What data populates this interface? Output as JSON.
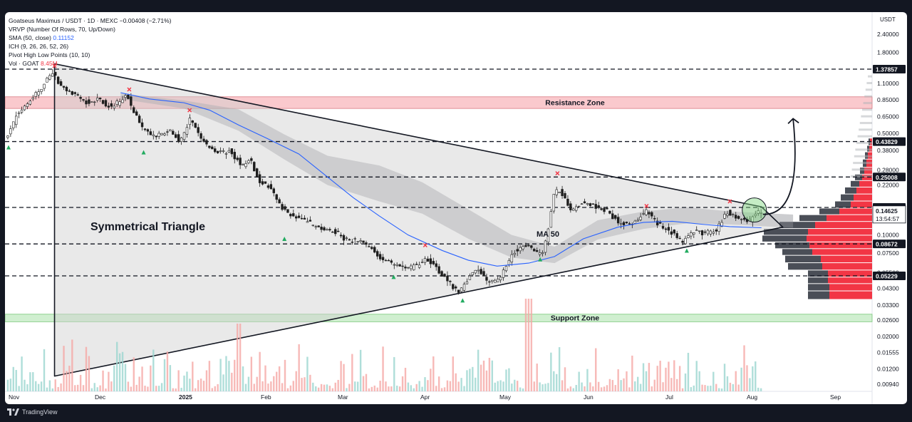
{
  "legend": {
    "symbol_line": "Goatseus Maximus / USDT · 1D · MEXC",
    "change": "−0.00408 (−2.71%)",
    "vrvp": "VRVP (Number Of Rows, 70, Up/Down)",
    "sma_label": "SMA (50, close)",
    "sma_value": "0.11152",
    "ich": "ICH (9, 26, 26, 52, 26)",
    "pivot": "Pivot High Low Points (10, 10)",
    "vol_label": "Vol · GOAT",
    "vol_value": "8.45M"
  },
  "footer": {
    "brand": "TradingView"
  },
  "colors": {
    "up": "#26a69a",
    "down": "#ef5350",
    "candle": "#1e1e1e",
    "sma": "#2962ff",
    "resistance": "#f8b7bc",
    "support": "#c8ecc8",
    "triangle": "#cfcfcf",
    "vrvp_up": "#4a4e57",
    "vrvp_down": "#f23645",
    "pivot_high": "#f23645",
    "pivot_low": "#22ab60"
  },
  "chart_data": {
    "type": "candlestick",
    "scale": "log",
    "currency_label": "USDT",
    "y_ticks": [
      "2.40000",
      "1.80000",
      "1.10000",
      "0.85000",
      "0.65000",
      "0.50000",
      "0.38000",
      "0.28000",
      "0.22000",
      "0.10000",
      "0.07500",
      "0.05500",
      "0.04300",
      "0.03300",
      "0.02600",
      "0.02000",
      "0.01555",
      "0.01200",
      "0.00940"
    ],
    "x_ticks": [
      "Nov",
      "Dec",
      "2025",
      "Feb",
      "Mar",
      "Apr",
      "May",
      "Jun",
      "Jul",
      "Aug",
      "Sep"
    ],
    "levels": [
      "1.37857",
      "0.43829",
      "0.25008",
      "0.15442",
      "0.08672",
      "0.05229"
    ],
    "current_price": "0.14625",
    "countdown": "13:54:57",
    "zones": [
      {
        "label": "Resistance Zone",
        "low": 0.74,
        "high": 0.89
      },
      {
        "label": "Support Zone",
        "low": 0.0253,
        "high": 0.0285
      }
    ],
    "annotations": {
      "pattern": "Symmetrical Triangle",
      "ma": "MA 50"
    },
    "price_path": [
      [
        "2024-10-27",
        0.62
      ],
      [
        "2024-11-01",
        0.45
      ],
      [
        "2024-11-05",
        0.68
      ],
      [
        "2024-11-10",
        0.86
      ],
      [
        "2024-11-14",
        1.05
      ],
      [
        "2024-11-17",
        1.33
      ],
      [
        "2024-11-20",
        1.05
      ],
      [
        "2024-11-24",
        0.93
      ],
      [
        "2024-11-29",
        0.82
      ],
      [
        "2024-12-03",
        0.86
      ],
      [
        "2024-12-08",
        0.74
      ],
      [
        "2024-12-13",
        0.92
      ],
      [
        "2024-12-18",
        0.56
      ],
      [
        "2024-12-22",
        0.47
      ],
      [
        "2024-12-28",
        0.52
      ],
      [
        "2025-01-01",
        0.44
      ],
      [
        "2025-01-04",
        0.62
      ],
      [
        "2025-01-09",
        0.43
      ],
      [
        "2025-01-14",
        0.37
      ],
      [
        "2025-01-18",
        0.38
      ],
      [
        "2025-01-22",
        0.3
      ],
      [
        "2025-01-25",
        0.33
      ],
      [
        "2025-01-28",
        0.24
      ],
      [
        "2025-02-02",
        0.2
      ],
      [
        "2025-02-05",
        0.155
      ],
      [
        "2025-02-09",
        0.133
      ],
      [
        "2025-02-13",
        0.126
      ],
      [
        "2025-02-18",
        0.112
      ],
      [
        "2025-02-24",
        0.104
      ],
      [
        "2025-02-28",
        0.092
      ],
      [
        "2025-03-04",
        0.092
      ],
      [
        "2025-03-08",
        0.081
      ],
      [
        "2025-03-12",
        0.068
      ],
      [
        "2025-03-16",
        0.063
      ],
      [
        "2025-03-20",
        0.058
      ],
      [
        "2025-03-24",
        0.062
      ],
      [
        "2025-03-28",
        0.069
      ],
      [
        "2025-04-01",
        0.055
      ],
      [
        "2025-04-05",
        0.045
      ],
      [
        "2025-04-08",
        0.04
      ],
      [
        "2025-04-11",
        0.051
      ],
      [
        "2025-04-14",
        0.06
      ],
      [
        "2025-04-18",
        0.047
      ],
      [
        "2025-04-22",
        0.05
      ],
      [
        "2025-04-26",
        0.073
      ],
      [
        "2025-04-30",
        0.086
      ],
      [
        "2025-05-04",
        0.076
      ],
      [
        "2025-05-07",
        0.077
      ],
      [
        "2025-05-09",
        0.118
      ],
      [
        "2025-05-11",
        0.2
      ],
      [
        "2025-05-13",
        0.198
      ],
      [
        "2025-05-17",
        0.145
      ],
      [
        "2025-05-20",
        0.165
      ],
      [
        "2025-05-25",
        0.158
      ],
      [
        "2025-05-30",
        0.142
      ],
      [
        "2025-06-03",
        0.118
      ],
      [
        "2025-06-08",
        0.122
      ],
      [
        "2025-06-12",
        0.148
      ],
      [
        "2025-06-16",
        0.118
      ],
      [
        "2025-06-20",
        0.108
      ],
      [
        "2025-06-24",
        0.089
      ],
      [
        "2025-06-28",
        0.104
      ],
      [
        "2025-07-02",
        0.104
      ],
      [
        "2025-07-06",
        0.105
      ],
      [
        "2025-07-10",
        0.146
      ],
      [
        "2025-07-14",
        0.128
      ],
      [
        "2025-07-18",
        0.127
      ],
      [
        "2025-07-21",
        0.146
      ]
    ],
    "sma50_path": [
      [
        "2024-12-10",
        0.95
      ],
      [
        "2024-12-20",
        0.86
      ],
      [
        "2025-01-01",
        0.81
      ],
      [
        "2025-01-10",
        0.72
      ],
      [
        "2025-01-20",
        0.57
      ],
      [
        "2025-01-30",
        0.46
      ],
      [
        "2025-02-10",
        0.36
      ],
      [
        "2025-02-20",
        0.25
      ],
      [
        "2025-03-01",
        0.18
      ],
      [
        "2025-03-10",
        0.135
      ],
      [
        "2025-03-20",
        0.1
      ],
      [
        "2025-04-01",
        0.078
      ],
      [
        "2025-04-10",
        0.067
      ],
      [
        "2025-04-20",
        0.061
      ],
      [
        "2025-05-01",
        0.064
      ],
      [
        "2025-05-10",
        0.071
      ],
      [
        "2025-05-20",
        0.094
      ],
      [
        "2025-06-01",
        0.113
      ],
      [
        "2025-06-10",
        0.122
      ],
      [
        "2025-06-20",
        0.124
      ],
      [
        "2025-07-01",
        0.118
      ],
      [
        "2025-07-10",
        0.114
      ],
      [
        "2025-07-21",
        0.112
      ]
    ],
    "cloud_upper_path": [
      [
        "2024-12-10",
        0.94
      ],
      [
        "2025-01-01",
        0.84
      ],
      [
        "2025-01-20",
        0.73
      ],
      [
        "2025-02-05",
        0.49
      ],
      [
        "2025-02-20",
        0.35
      ],
      [
        "2025-03-10",
        0.3
      ],
      [
        "2025-03-25",
        0.23
      ],
      [
        "2025-04-10",
        0.15
      ],
      [
        "2025-04-25",
        0.1
      ],
      [
        "2025-05-10",
        0.083
      ],
      [
        "2025-05-25",
        0.126
      ],
      [
        "2025-06-10",
        0.145
      ],
      [
        "2025-06-25",
        0.155
      ],
      [
        "2025-07-10",
        0.145
      ],
      [
        "2025-08-01",
        0.138
      ]
    ],
    "cloud_lower_path": [
      [
        "2024-12-10",
        0.86
      ],
      [
        "2025-01-01",
        0.74
      ],
      [
        "2025-01-20",
        0.52
      ],
      [
        "2025-02-05",
        0.33
      ],
      [
        "2025-02-20",
        0.22
      ],
      [
        "2025-03-10",
        0.17
      ],
      [
        "2025-03-25",
        0.14
      ],
      [
        "2025-04-10",
        0.094
      ],
      [
        "2025-04-25",
        0.07
      ],
      [
        "2025-05-10",
        0.064
      ],
      [
        "2025-05-25",
        0.093
      ],
      [
        "2025-06-10",
        0.11
      ],
      [
        "2025-06-25",
        0.12
      ],
      [
        "2025-07-10",
        0.118
      ],
      [
        "2025-08-01",
        0.112
      ]
    ],
    "triangle": [
      [
        "2024-11-17",
        1.5
      ],
      [
        "2024-11-17",
        0.0107
      ],
      [
        "2025-07-21",
        0.108
      ],
      [
        "2025-07-21",
        0.156
      ]
    ],
    "pivot_highs": [
      [
        "2024-11-17",
        1.45
      ],
      [
        "2024-12-13",
        1.0
      ],
      [
        "2025-01-03",
        0.72
      ],
      [
        "2025-03-26",
        0.085
      ],
      [
        "2025-05-11",
        0.265
      ],
      [
        "2025-06-11",
        0.158
      ],
      [
        "2025-07-10",
        0.17
      ]
    ],
    "pivot_lows": [
      [
        "2024-11-01",
        0.4
      ],
      [
        "2024-12-18",
        0.37
      ],
      [
        "2025-02-05",
        0.094
      ],
      [
        "2025-03-15",
        0.0515
      ],
      [
        "2025-04-08",
        0.0355
      ],
      [
        "2025-05-05",
        0.068
      ],
      [
        "2025-06-25",
        0.078
      ]
    ],
    "projection": [
      [
        "2025-07-21",
        0.145
      ],
      [
        "2025-07-29",
        0.32
      ],
      [
        "2025-08-01",
        0.63
      ]
    ],
    "vrvp_rows": [
      {
        "price": 0.46,
        "up": 2,
        "down": 3
      },
      {
        "price": 0.41,
        "up": 3,
        "down": 4
      },
      {
        "price": 0.37,
        "up": 4,
        "down": 6
      },
      {
        "price": 0.33,
        "up": 5,
        "down": 8
      },
      {
        "price": 0.29,
        "up": 6,
        "down": 11
      },
      {
        "price": 0.26,
        "up": 10,
        "down": 14
      },
      {
        "price": 0.235,
        "up": 12,
        "down": 18
      },
      {
        "price": 0.212,
        "up": 16,
        "down": 22
      },
      {
        "price": 0.19,
        "up": 18,
        "down": 26
      },
      {
        "price": 0.17,
        "up": 22,
        "down": 30
      },
      {
        "price": 0.152,
        "up": 28,
        "down": 46
      },
      {
        "price": 0.137,
        "up": 38,
        "down": 64
      },
      {
        "price": 0.123,
        "up": 50,
        "down": 80
      },
      {
        "price": 0.11,
        "up": 62,
        "down": 90
      },
      {
        "price": 0.099,
        "up": 62,
        "down": 92
      },
      {
        "price": 0.089,
        "up": 48,
        "down": 88
      },
      {
        "price": 0.08,
        "up": 42,
        "down": 84
      },
      {
        "price": 0.072,
        "up": 50,
        "down": 72
      },
      {
        "price": 0.064,
        "up": 48,
        "down": 70
      },
      {
        "price": 0.057,
        "up": 28,
        "down": 62
      },
      {
        "price": 0.051,
        "up": 28,
        "down": 62
      },
      {
        "price": 0.046,
        "up": 30,
        "down": 60
      },
      {
        "price": 0.041,
        "up": 30,
        "down": 60
      }
    ]
  }
}
